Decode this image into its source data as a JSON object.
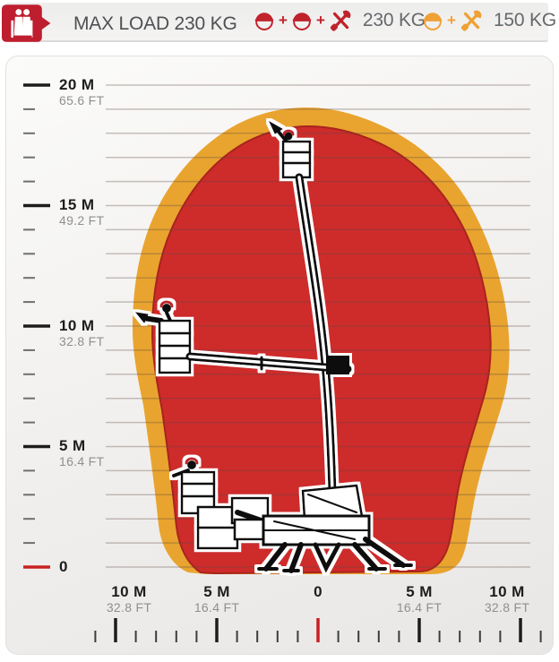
{
  "header": {
    "badge": {
      "icon": "two-workers-in-basket-icon",
      "color": "#bf1e2e"
    },
    "max_load_text": "MAX LOAD 230 KG",
    "plus": "+",
    "modes": [
      {
        "name": "two-operators-plus-tools",
        "icon_color": "#c0232c",
        "icons": [
          "operator-helmet-icon",
          "operator-helmet-icon",
          "tools-icon"
        ],
        "value": "230 KG"
      },
      {
        "name": "one-operator-plus-tools",
        "icon_color": "#efa136",
        "icons": [
          "operator-helmet-icon",
          "tools-icon"
        ],
        "value": "150 KG"
      }
    ]
  },
  "chart_data": {
    "type": "area",
    "title": "Aerial work platform working envelope (reach diagram)",
    "grid": true,
    "x_axis": {
      "major_step_m": 5,
      "minor_step_m": 1,
      "range_m": [
        -10.5,
        11.8
      ],
      "ticks": [
        {
          "m": "10 M",
          "ft": "32.8 FT"
        },
        {
          "m": "5 M",
          "ft": "16.4 FT"
        },
        {
          "m": "0",
          "ft": ""
        },
        {
          "m": "5 M",
          "ft": "16.4 FT"
        },
        {
          "m": "10 M",
          "ft": "32.8 FT"
        }
      ]
    },
    "y_axis": {
      "major_step_m": 5,
      "minor_step_m": 1,
      "range_m": [
        0,
        20
      ],
      "ticks": [
        {
          "m": "20 M",
          "ft": "65.6 FT"
        },
        {
          "m": "15 M",
          "ft": "49.2 FT"
        },
        {
          "m": "10 M",
          "ft": "32.8 FT"
        },
        {
          "m": "5 M",
          "ft": "16.4 FT"
        },
        {
          "m": "0",
          "ft": ""
        }
      ]
    },
    "envelope": {
      "outer_band_color": "#e9a42f",
      "fill_color": "#ce2b2b",
      "edge_color": "#a8241c",
      "zero_tick_color": "#c92121",
      "max_height_m": 19.1,
      "max_outreach_left_m": 9.2,
      "max_outreach_right_m": 9.4,
      "outline_outer_m": [
        [
          -6.4,
          -0.2
        ],
        [
          -7.8,
          1.8
        ],
        [
          -8.4,
          5.7
        ],
        [
          -9.2,
          9.8
        ],
        [
          -9.0,
          12.4
        ],
        [
          -7.0,
          16.4
        ],
        [
          -3.3,
          18.8
        ],
        [
          -1.1,
          19.1
        ],
        [
          1.1,
          18.9
        ],
        [
          5.5,
          17.3
        ],
        [
          8.4,
          14.1
        ],
        [
          9.4,
          9.8
        ],
        [
          8.9,
          6.8
        ],
        [
          7.7,
          3.5
        ],
        [
          7.1,
          0.7
        ],
        [
          5.5,
          -0.3
        ]
      ]
    },
    "machine": {
      "icon": "spider-boom-lift-silhouette",
      "positions": [
        "boom fully raised, basket near 18 m height",
        "boom horizontal, basket at ~10 m height, ~6.5 m outreach left",
        "boom stowed low, basket at ~3.5 m height"
      ]
    }
  }
}
